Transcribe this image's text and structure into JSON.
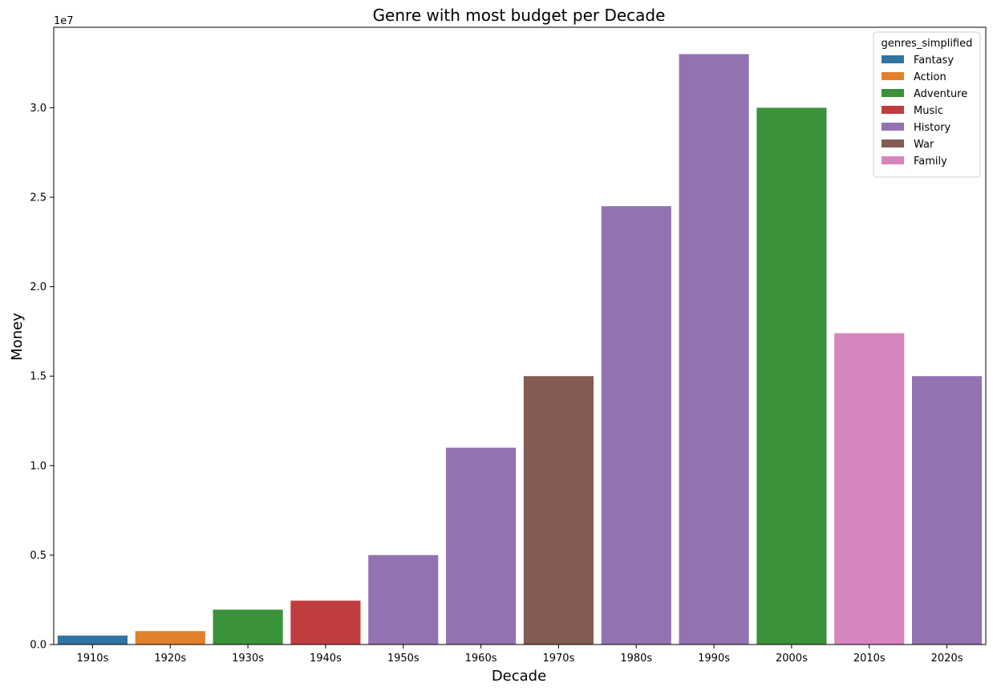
{
  "chart_data": {
    "type": "bar",
    "title": "Genre with most budget per Decade",
    "xlabel": "Decade",
    "ylabel": "Money",
    "y_offset_label": "1e7",
    "ylim": [
      0,
      34500000
    ],
    "y_ticks": [
      0,
      5000000,
      10000000,
      15000000,
      20000000,
      25000000,
      30000000
    ],
    "y_tick_labels": [
      "0.0",
      "0.5",
      "1.0",
      "1.5",
      "2.0",
      "2.5",
      "3.0"
    ],
    "grid": false,
    "categories": [
      "1910s",
      "1920s",
      "1930s",
      "1940s",
      "1950s",
      "1960s",
      "1970s",
      "1980s",
      "1990s",
      "2000s",
      "2010s",
      "2020s"
    ],
    "values": [
      500000,
      750000,
      1950000,
      2450000,
      5000000,
      11000000,
      15000000,
      24500000,
      33000000,
      30000000,
      17400000,
      15000000
    ],
    "bar_genres": [
      "Fantasy",
      "Action",
      "Adventure",
      "Music",
      "History",
      "History",
      "War",
      "History",
      "History",
      "Adventure",
      "Family",
      "History"
    ],
    "legend": {
      "title": "genres_simplified",
      "placement": "upper right",
      "entries": [
        {
          "name": "Fantasy",
          "color": "#3274a1"
        },
        {
          "name": "Action",
          "color": "#e1812c"
        },
        {
          "name": "Adventure",
          "color": "#3a923a"
        },
        {
          "name": "Music",
          "color": "#c03d3e"
        },
        {
          "name": "History",
          "color": "#9372b2"
        },
        {
          "name": "War",
          "color": "#845b53"
        },
        {
          "name": "Family",
          "color": "#d684bd"
        }
      ]
    }
  }
}
